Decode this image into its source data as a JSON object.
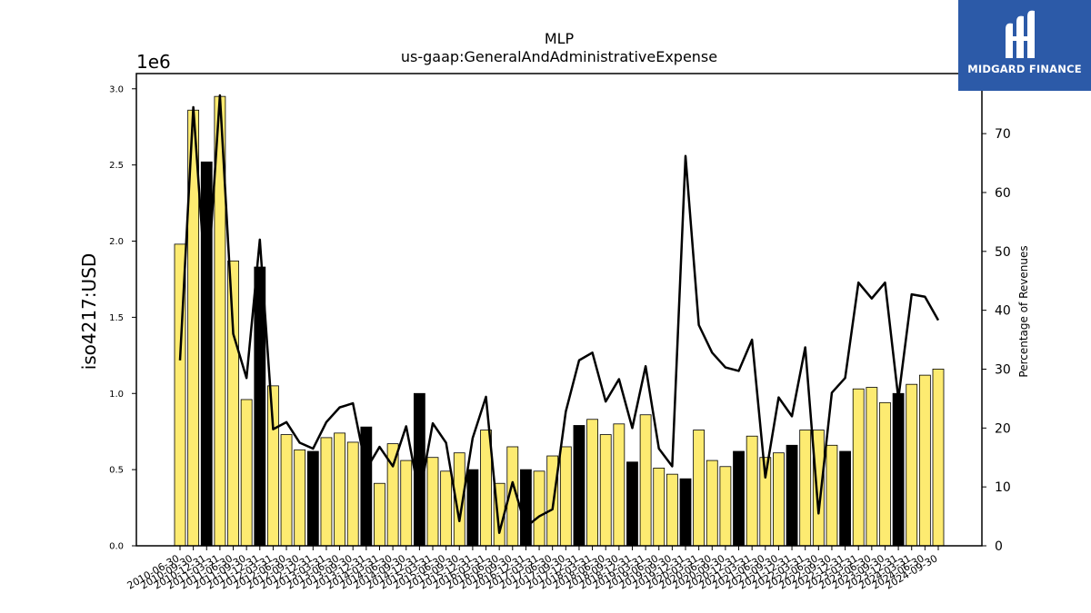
{
  "logo": {
    "text": "MIDGARD FINANCE",
    "icon": "mf-monogram-icon",
    "background": "#2c5aa8"
  },
  "chart_data": {
    "type": "bar",
    "title": "MLP",
    "subtitle": "us-gaap:GeneralAndAdministrativeExpense",
    "ylabel": "iso4217:USD",
    "y_offset_label": "1e6",
    "y2label": "Percentage of Revenues",
    "ylim": [
      0,
      3.1
    ],
    "y_ticks": [
      "0.0",
      "0.5",
      "1.0",
      "1.5",
      "2.0",
      "2.5",
      "3.0"
    ],
    "y2lim": [
      0,
      80.2
    ],
    "y2_ticks": [
      "0",
      "10",
      "20",
      "30",
      "40",
      "50",
      "60",
      "70"
    ],
    "colors": {
      "quarter": "#fdeb71",
      "fiscal_year": "#000000",
      "line": "#000000"
    },
    "x_tick_labels": [
      "2010-06-30",
      "2010-09-30",
      "2010-12-31",
      "2011-03-31",
      "2011-06-30",
      "2011-09-30",
      "2011-12-31",
      "2012-03-31",
      "2012-06-30",
      "2012-09-30",
      "2012-12-31",
      "2013-03-31",
      "2013-06-30",
      "2013-09-30",
      "2013-12-31",
      "2014-03-31",
      "2014-06-30",
      "2014-09-30",
      "2014-12-31",
      "2015-03-31",
      "2015-06-30",
      "2015-09-30",
      "2015-12-31",
      "2016-03-31",
      "2016-06-30",
      "2016-09-30",
      "2016-12-31",
      "2017-03-31",
      "2017-06-30",
      "2017-09-30",
      "2017-12-31",
      "2018-03-31",
      "2018-06-30",
      "2018-09-30",
      "2018-12-31",
      "2019-03-31",
      "2019-06-30",
      "2019-09-30",
      "2019-12-31",
      "2020-03-31",
      "2020-06-30",
      "2020-09-30",
      "2020-12-31",
      "2021-03-31",
      "2021-06-30",
      "2021-09-30",
      "2021-12-31",
      "2022-03-31",
      "2022-06-30",
      "2022-09-30",
      "2022-12-31",
      "2023-03-31",
      "2023-06-30",
      "2023-09-30",
      "2023-12-31",
      "2024-03-31",
      "2024-06-30",
      "2024-09-30"
    ],
    "values": [
      1.98,
      2.86,
      2.52,
      2.95,
      1.87,
      0.96,
      1.83,
      1.05,
      0.73,
      0.63,
      0.62,
      0.71,
      0.74,
      0.68,
      0.78,
      0.41,
      0.67,
      0.56,
      1.0,
      0.58,
      0.49,
      0.61,
      0.5,
      0.76,
      0.41,
      0.65,
      0.5,
      0.49,
      0.59,
      0.65,
      0.79,
      0.83,
      0.73,
      0.8,
      0.55,
      0.86,
      0.51,
      0.47,
      0.44,
      0.76,
      0.56,
      0.52,
      0.62,
      0.72,
      0.58,
      0.61,
      0.66,
      0.76,
      0.76,
      0.66,
      0.62,
      1.03,
      1.04,
      0.94,
      1.0,
      1.06,
      1.12,
      1.16
    ],
    "is_fiscal_year_end": [
      false,
      false,
      true,
      false,
      false,
      false,
      true,
      false,
      false,
      false,
      true,
      false,
      false,
      false,
      true,
      false,
      false,
      false,
      true,
      false,
      false,
      false,
      true,
      false,
      false,
      false,
      true,
      false,
      false,
      false,
      true,
      false,
      false,
      false,
      true,
      false,
      false,
      false,
      true,
      false,
      false,
      false,
      true,
      false,
      false,
      false,
      true,
      false,
      false,
      false,
      true,
      false,
      false,
      false,
      true,
      false,
      false,
      false
    ],
    "percentage_of_revenues": [
      31.5,
      74.5,
      42.0,
      76.5,
      36.0,
      28.5,
      52.0,
      19.8,
      21.0,
      17.5,
      16.5,
      21.0,
      23.5,
      24.2,
      13.0,
      16.8,
      13.5,
      20.3,
      8.5,
      20.8,
      17.5,
      4.2,
      18.3,
      25.3,
      2.2,
      10.8,
      3.2,
      5.0,
      6.2,
      22.8,
      31.5,
      32.8,
      24.5,
      28.3,
      20.0,
      30.5,
      16.5,
      13.5,
      66.2,
      37.5,
      32.8,
      30.3,
      29.7,
      35.0,
      11.6,
      25.2,
      22.0,
      33.7,
      5.5,
      26.0,
      28.5,
      44.7,
      42.0,
      44.7,
      25.0,
      42.7,
      42.3,
      38.3
    ]
  }
}
